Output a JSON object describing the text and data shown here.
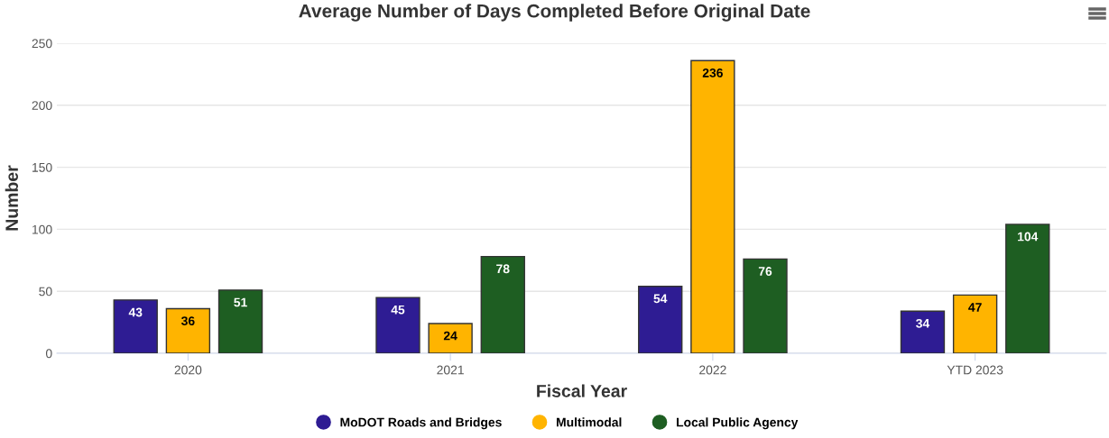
{
  "chart_data": {
    "type": "bar",
    "title": "Average Number of Days Completed Before Original Date",
    "xlabel": "Fiscal Year",
    "ylabel": "Number",
    "categories": [
      "2020",
      "2021",
      "2022",
      "YTD 2023"
    ],
    "series": [
      {
        "name": "MoDOT Roads and Bridges",
        "color": "#2e1c93",
        "values": [
          43,
          45,
          54,
          34
        ]
      },
      {
        "name": "Multimodal",
        "color": "#ffb400",
        "values": [
          36,
          24,
          236,
          47
        ]
      },
      {
        "name": "Local Public Agency",
        "color": "#1e5e22",
        "values": [
          51,
          78,
          76,
          104
        ]
      }
    ],
    "ylim": [
      0,
      250
    ],
    "yticks": [
      0,
      50,
      100,
      150,
      200,
      250
    ],
    "grid": "y",
    "legend": "bottom",
    "data_labels": true
  }
}
